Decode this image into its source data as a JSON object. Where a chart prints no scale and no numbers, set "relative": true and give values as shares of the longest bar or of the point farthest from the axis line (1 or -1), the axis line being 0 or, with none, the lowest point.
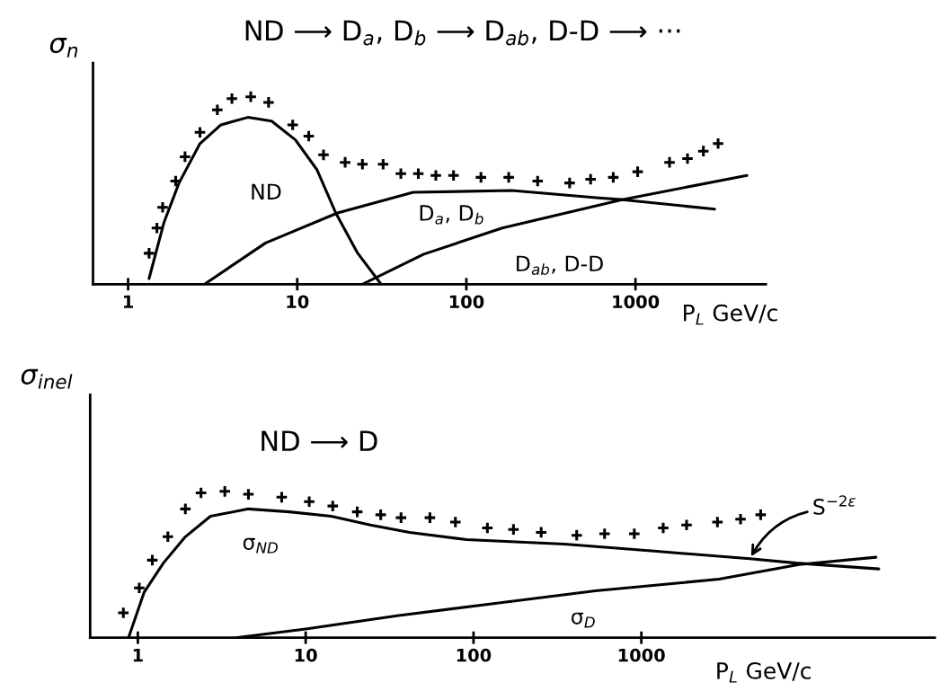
{
  "chart_data": [
    {
      "type": "line",
      "title": "ND ⟶ D$_{a}$, D$_{b}$ ⟶ D$_{ab}$, D-D ⟶ ···",
      "ylabel": "σ$_{n}$",
      "xlabel": "P$_{L}$ GeV/c",
      "log": "x",
      "relative": true,
      "xlim": [
        0.62,
        5900
      ],
      "xticks": [
        1,
        10,
        100,
        1000
      ],
      "grid": false,
      "legend": false,
      "series": [
        {
          "type": "scatter",
          "marker": "cross",
          "color": "#000000",
          "x": [
            1.33,
            1.48,
            1.6,
            1.91,
            2.17,
            2.66,
            3.37,
            4.11,
            5.31,
            6.77,
            9.4,
            11.7,
            14.3,
            19.2,
            24.3,
            32.2,
            41,
            52,
            66,
            84,
            122,
            178,
            264,
            408,
            543,
            739,
            1030,
            1590,
            2030,
            2520,
            3080
          ],
          "values": [
            0.165,
            0.3,
            0.41,
            0.55,
            0.68,
            0.81,
            0.93,
            0.99,
            1.0,
            0.97,
            0.85,
            0.79,
            0.69,
            0.65,
            0.64,
            0.64,
            0.59,
            0.59,
            0.58,
            0.58,
            0.57,
            0.57,
            0.55,
            0.54,
            0.56,
            0.57,
            0.6,
            0.65,
            0.67,
            0.71,
            0.75
          ]
        },
        {
          "name": "ND",
          "color": "#000000",
          "x": [
            1.33,
            1.63,
            2.0,
            2.66,
            3.54,
            5.1,
            7.05,
            9.75,
            13.1,
            16.9,
            22.6,
            31.3
          ],
          "values": [
            0.03,
            0.33,
            0.54,
            0.75,
            0.85,
            0.89,
            0.87,
            0.77,
            0.61,
            0.38,
            0.17,
            0
          ]
        },
        {
          "name": "D$_{a}$, D$_{b}$",
          "color": "#000000",
          "x": [
            2.83,
            6.5,
            17.3,
            48.5,
            186,
            607,
            861,
            2940
          ],
          "values": [
            0,
            0.22,
            0.38,
            0.49,
            0.5,
            0.46,
            0.45,
            0.4
          ]
        },
        {
          "name": "D$_{ab}$, D-D",
          "color": "#000000",
          "x": [
            24.3,
            56,
            163,
            822,
            4560
          ],
          "values": [
            0,
            0.16,
            0.3,
            0.45,
            0.58
          ]
        }
      ]
    },
    {
      "type": "line",
      "ylabel": "σ$_{inel}$",
      "xlabel": "P$_{L}$ GeV/c",
      "log": "x",
      "relative": true,
      "xlim": [
        0.52,
        56000
      ],
      "xticks": [
        1,
        10,
        100,
        1000
      ],
      "grid": false,
      "legend": false,
      "annotations": [
        "ND ⟶ D",
        {
          "text": "S$^{−2ε}$",
          "x": 4430,
          "y": 0.54
        }
      ],
      "series": [
        {
          "type": "scatter",
          "marker": "cross",
          "color": "#000000",
          "x": [
            0.82,
            1.02,
            1.22,
            1.51,
            1.92,
            2.38,
            3.3,
            4.56,
            7.2,
            10.5,
            14.5,
            20.3,
            28,
            37,
            55,
            78,
            121,
            173,
            253,
            412,
            604,
            908,
            1350,
            1860,
            2840,
            3900,
            5140
          ],
          "values": [
            0.17,
            0.34,
            0.53,
            0.69,
            0.88,
            0.99,
            1.0,
            0.98,
            0.96,
            0.93,
            0.9,
            0.86,
            0.84,
            0.82,
            0.82,
            0.79,
            0.75,
            0.74,
            0.72,
            0.7,
            0.71,
            0.71,
            0.75,
            0.77,
            0.79,
            0.81,
            0.84
          ]
        },
        {
          "name": "σ$_{ND}$",
          "color": "#000000",
          "x": [
            0.88,
            1.09,
            1.42,
            1.92,
            2.71,
            4.56,
            8.0,
            14.2,
            24.3,
            41.6,
            91,
            348,
            1240,
            4430,
            8370,
            26000
          ],
          "values": [
            0,
            0.31,
            0.51,
            0.69,
            0.83,
            0.88,
            0.86,
            0.83,
            0.77,
            0.72,
            0.67,
            0.64,
            0.59,
            0.54,
            0.51,
            0.47
          ]
        },
        {
          "name": "σ$_{D}$",
          "color": "#000000",
          "x": [
            3.84,
            10,
            35,
            125,
            532,
            2900,
            8700,
            25000
          ],
          "values": [
            0,
            0.06,
            0.15,
            0.23,
            0.32,
            0.4,
            0.5,
            0.55
          ]
        }
      ]
    }
  ]
}
